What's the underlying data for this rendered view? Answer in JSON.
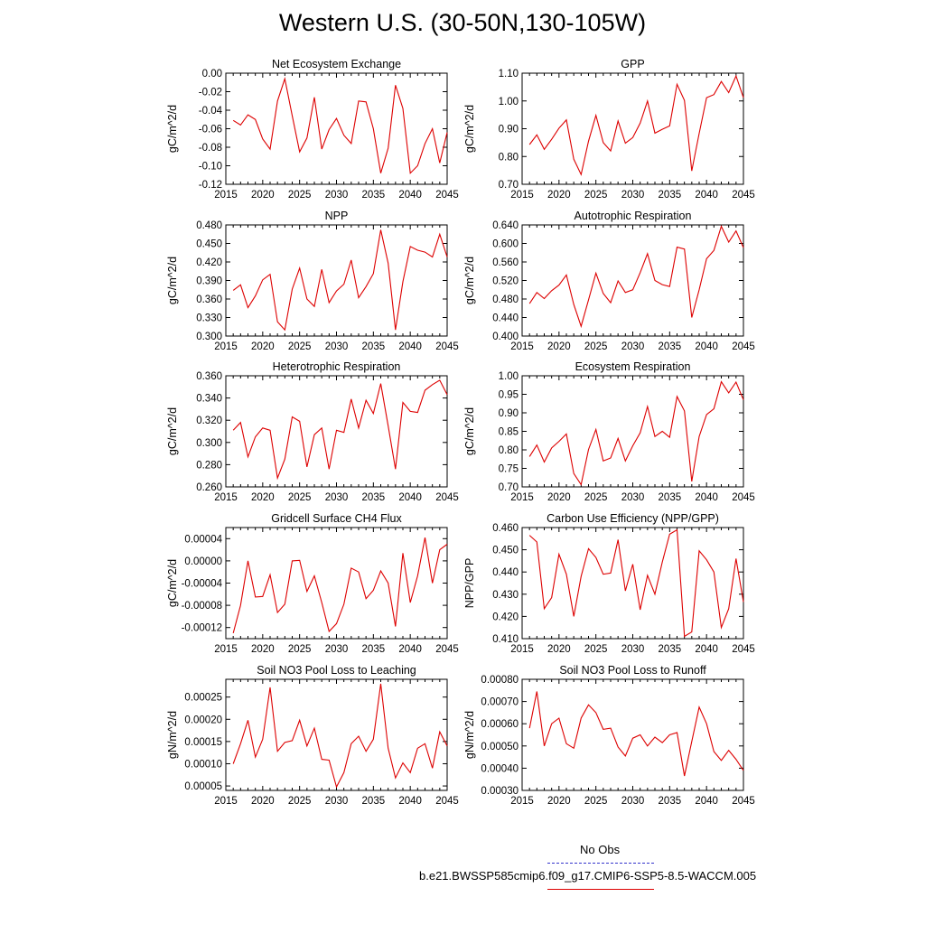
{
  "title": "Western U.S. (30-50N,130-105W)",
  "legend": [
    {
      "label": "No Obs",
      "color": "#3333cc",
      "style": "dashed"
    },
    {
      "label": "b.e21.BWSSP585cmip6.f09_g17.CMIP6-SSP5-8.5-WACCM.005",
      "color": "#dd0000",
      "style": "solid"
    }
  ],
  "line_color": "#dd0000",
  "x_ticks": [
    2015,
    2020,
    2025,
    2030,
    2035,
    2040,
    2045
  ],
  "chart_data": [
    {
      "type": "line",
      "title": "Net Ecosystem Exchange",
      "ylabel": "gC/m^2/d",
      "xlim": [
        2015,
        2045
      ],
      "ylim": [
        -0.12,
        0.0
      ],
      "yticks": [
        "0.00",
        "-0.02",
        "-0.04",
        "-0.06",
        "-0.08",
        "-0.10",
        "-0.12"
      ],
      "ytick_values": [
        0.0,
        -0.02,
        -0.04,
        -0.06,
        -0.08,
        -0.1,
        -0.12
      ],
      "x": [
        2016,
        2017,
        2018,
        2019,
        2020,
        2021,
        2022,
        2023,
        2024,
        2025,
        2026,
        2027,
        2028,
        2029,
        2030,
        2031,
        2032,
        2033,
        2034,
        2035,
        2036,
        2037,
        2038,
        2039,
        2040,
        2041,
        2042,
        2043,
        2044,
        2045
      ],
      "values": [
        -0.051,
        -0.056,
        -0.045,
        -0.05,
        -0.071,
        -0.082,
        -0.03,
        -0.006,
        -0.046,
        -0.085,
        -0.07,
        -0.026,
        -0.082,
        -0.061,
        -0.049,
        -0.067,
        -0.076,
        -0.03,
        -0.031,
        -0.06,
        -0.108,
        -0.081,
        -0.013,
        -0.038,
        -0.108,
        -0.1,
        -0.076,
        -0.06,
        -0.097,
        -0.064
      ]
    },
    {
      "type": "line",
      "title": "GPP",
      "ylabel": "gC/m^2/d",
      "xlim": [
        2015,
        2045
      ],
      "ylim": [
        0.7,
        1.1
      ],
      "yticks": [
        "0.70",
        "0.80",
        "0.90",
        "1.00",
        "1.10"
      ],
      "ytick_values": [
        0.7,
        0.8,
        0.9,
        1.0,
        1.1
      ],
      "x": [
        2016,
        2017,
        2018,
        2019,
        2020,
        2021,
        2022,
        2023,
        2024,
        2025,
        2026,
        2027,
        2028,
        2029,
        2030,
        2031,
        2032,
        2033,
        2034,
        2035,
        2036,
        2037,
        2038,
        2039,
        2040,
        2041,
        2042,
        2043,
        2044,
        2045
      ],
      "values": [
        0.843,
        0.878,
        0.826,
        0.862,
        0.902,
        0.932,
        0.79,
        0.735,
        0.855,
        0.948,
        0.85,
        0.82,
        0.928,
        0.848,
        0.868,
        0.92,
        1.0,
        0.884,
        0.898,
        0.91,
        1.06,
        1.002,
        0.748,
        0.883,
        1.012,
        1.023,
        1.07,
        1.03,
        1.09,
        1.012
      ]
    },
    {
      "type": "line",
      "title": "NPP",
      "ylabel": "gC/m^2/d",
      "xlim": [
        2015,
        2045
      ],
      "ylim": [
        0.3,
        0.48
      ],
      "yticks": [
        "0.300",
        "0.330",
        "0.360",
        "0.390",
        "0.420",
        "0.450",
        "0.480"
      ],
      "ytick_values": [
        0.3,
        0.33,
        0.36,
        0.39,
        0.42,
        0.45,
        0.48
      ],
      "x": [
        2016,
        2017,
        2018,
        2019,
        2020,
        2021,
        2022,
        2023,
        2024,
        2025,
        2026,
        2027,
        2028,
        2029,
        2030,
        2031,
        2032,
        2033,
        2034,
        2035,
        2036,
        2037,
        2038,
        2039,
        2040,
        2041,
        2042,
        2043,
        2044,
        2045
      ],
      "values": [
        0.374,
        0.383,
        0.346,
        0.365,
        0.391,
        0.4,
        0.323,
        0.31,
        0.376,
        0.41,
        0.36,
        0.348,
        0.408,
        0.354,
        0.373,
        0.384,
        0.423,
        0.362,
        0.38,
        0.401,
        0.472,
        0.418,
        0.31,
        0.388,
        0.445,
        0.439,
        0.436,
        0.428,
        0.465,
        0.428
      ]
    },
    {
      "type": "line",
      "title": "Autotrophic Respiration",
      "ylabel": "gC/m^2/d",
      "xlim": [
        2015,
        2045
      ],
      "ylim": [
        0.4,
        0.64
      ],
      "yticks": [
        "0.400",
        "0.440",
        "0.480",
        "0.520",
        "0.560",
        "0.600",
        "0.640"
      ],
      "ytick_values": [
        0.4,
        0.44,
        0.48,
        0.52,
        0.56,
        0.6,
        0.64
      ],
      "x": [
        2016,
        2017,
        2018,
        2019,
        2020,
        2021,
        2022,
        2023,
        2024,
        2025,
        2026,
        2027,
        2028,
        2029,
        2030,
        2031,
        2032,
        2033,
        2034,
        2035,
        2036,
        2037,
        2038,
        2039,
        2040,
        2041,
        2042,
        2043,
        2044,
        2045
      ],
      "values": [
        0.47,
        0.494,
        0.481,
        0.498,
        0.51,
        0.532,
        0.468,
        0.421,
        0.478,
        0.536,
        0.492,
        0.472,
        0.519,
        0.494,
        0.5,
        0.537,
        0.578,
        0.52,
        0.511,
        0.507,
        0.592,
        0.588,
        0.44,
        0.5,
        0.567,
        0.585,
        0.637,
        0.603,
        0.627,
        0.591
      ]
    },
    {
      "type": "line",
      "title": "Heterotrophic Respiration",
      "ylabel": "gC/m^2/d",
      "xlim": [
        2015,
        2045
      ],
      "ylim": [
        0.26,
        0.36
      ],
      "yticks": [
        "0.260",
        "0.280",
        "0.300",
        "0.320",
        "0.340",
        "0.360"
      ],
      "ytick_values": [
        0.26,
        0.28,
        0.3,
        0.32,
        0.34,
        0.36
      ],
      "x": [
        2016,
        2017,
        2018,
        2019,
        2020,
        2021,
        2022,
        2023,
        2024,
        2025,
        2026,
        2027,
        2028,
        2029,
        2030,
        2031,
        2032,
        2033,
        2034,
        2035,
        2036,
        2037,
        2038,
        2039,
        2040,
        2041,
        2042,
        2043,
        2044,
        2045
      ],
      "values": [
        0.311,
        0.318,
        0.287,
        0.305,
        0.313,
        0.311,
        0.268,
        0.285,
        0.323,
        0.319,
        0.278,
        0.307,
        0.313,
        0.276,
        0.311,
        0.309,
        0.339,
        0.313,
        0.338,
        0.326,
        0.353,
        0.315,
        0.276,
        0.336,
        0.328,
        0.327,
        0.347,
        0.352,
        0.356,
        0.343
      ]
    },
    {
      "type": "line",
      "title": "Ecosystem Respiration",
      "ylabel": "gC/m^2/d",
      "xlim": [
        2015,
        2045
      ],
      "ylim": [
        0.7,
        1.0
      ],
      "yticks": [
        "0.70",
        "0.75",
        "0.80",
        "0.85",
        "0.90",
        "0.95",
        "1.00"
      ],
      "ytick_values": [
        0.7,
        0.75,
        0.8,
        0.85,
        0.9,
        0.95,
        1.0
      ],
      "x": [
        2016,
        2017,
        2018,
        2019,
        2020,
        2021,
        2022,
        2023,
        2024,
        2025,
        2026,
        2027,
        2028,
        2029,
        2030,
        2031,
        2032,
        2033,
        2034,
        2035,
        2036,
        2037,
        2038,
        2039,
        2040,
        2041,
        2042,
        2043,
        2044,
        2045
      ],
      "values": [
        0.782,
        0.813,
        0.767,
        0.805,
        0.823,
        0.843,
        0.736,
        0.706,
        0.801,
        0.855,
        0.77,
        0.778,
        0.831,
        0.77,
        0.811,
        0.846,
        0.917,
        0.836,
        0.85,
        0.834,
        0.944,
        0.905,
        0.715,
        0.836,
        0.895,
        0.911,
        0.984,
        0.954,
        0.983,
        0.935
      ]
    },
    {
      "type": "line",
      "title": "Gridcell Surface CH4 Flux",
      "ylabel": "gC/m^2/d",
      "xlim": [
        2015,
        2045
      ],
      "ylim": [
        -0.00014,
        6e-05
      ],
      "yticks": [
        "0.00004",
        "0.00000",
        "-0.00004",
        "-0.00008",
        "-0.00012"
      ],
      "ytick_values": [
        4e-05,
        0.0,
        -4e-05,
        -8e-05,
        -0.00012
      ],
      "x": [
        2016,
        2017,
        2018,
        2019,
        2020,
        2021,
        2022,
        2023,
        2024,
        2025,
        2026,
        2027,
        2028,
        2029,
        2030,
        2031,
        2032,
        2033,
        2034,
        2035,
        2036,
        2037,
        2038,
        2039,
        2040,
        2041,
        2042,
        2043,
        2044,
        2045
      ],
      "values": [
        -0.00013,
        -8e-05,
        0.0,
        -6.5e-05,
        -6.4e-05,
        -2.5e-05,
        -9.3e-05,
        -7.8e-05,
        0.0,
        1e-06,
        -5.5e-05,
        -2.7e-05,
        -7.5e-05,
        -0.000127,
        -0.000113,
        -7.8e-05,
        -1.3e-05,
        -2e-05,
        -6.8e-05,
        -5.3e-05,
        -1.8e-05,
        -4e-05,
        -0.000118,
        1.4e-05,
        -7.5e-05,
        -2.7e-05,
        4.2e-05,
        -4e-05,
        2e-05,
        3e-05
      ]
    },
    {
      "type": "line",
      "title": "Carbon Use Efficiency (NPP/GPP)",
      "ylabel": "NPP/GPP",
      "xlim": [
        2015,
        2045
      ],
      "ylim": [
        0.41,
        0.46
      ],
      "yticks": [
        "0.410",
        "0.420",
        "0.430",
        "0.440",
        "0.450",
        "0.460"
      ],
      "ytick_values": [
        0.41,
        0.42,
        0.43,
        0.44,
        0.45,
        0.46
      ],
      "x": [
        2016,
        2017,
        2018,
        2019,
        2020,
        2021,
        2022,
        2023,
        2024,
        2025,
        2026,
        2027,
        2028,
        2029,
        2030,
        2031,
        2032,
        2033,
        2034,
        2035,
        2036,
        2037,
        2038,
        2039,
        2040,
        2041,
        2042,
        2043,
        2044,
        2045
      ],
      "values": [
        0.4565,
        0.4535,
        0.4235,
        0.4285,
        0.448,
        0.439,
        0.42,
        0.438,
        0.4505,
        0.4465,
        0.439,
        0.4395,
        0.4545,
        0.4315,
        0.4435,
        0.423,
        0.4385,
        0.43,
        0.4445,
        0.457,
        0.459,
        0.411,
        0.413,
        0.4495,
        0.4455,
        0.44,
        0.415,
        0.4235,
        0.446,
        0.4265
      ]
    },
    {
      "type": "line",
      "title": "Soil NO3 Pool Loss to Leaching",
      "ylabel": "gN/m^2/d",
      "xlim": [
        2015,
        2045
      ],
      "ylim": [
        4e-05,
        0.00029
      ],
      "yticks": [
        "0.00005",
        "0.00010",
        "0.00015",
        "0.00020",
        "0.00025"
      ],
      "ytick_values": [
        5e-05,
        0.0001,
        0.00015,
        0.0002,
        0.00025
      ],
      "x": [
        2016,
        2017,
        2018,
        2019,
        2020,
        2021,
        2022,
        2023,
        2024,
        2025,
        2026,
        2027,
        2028,
        2029,
        2030,
        2031,
        2032,
        2033,
        2034,
        2035,
        2036,
        2037,
        2038,
        2039,
        2040,
        2041,
        2042,
        2043,
        2044,
        2045
      ],
      "values": [
        0.0001,
        0.000145,
        0.000198,
        0.000115,
        0.000155,
        0.000272,
        0.000128,
        0.000148,
        0.000152,
        0.000198,
        0.00014,
        0.00018,
        0.00011,
        0.000108,
        4.8e-05,
        8e-05,
        0.000145,
        0.000162,
        0.000128,
        0.000155,
        0.00028,
        0.000135,
        6.8e-05,
        0.000102,
        8e-05,
        0.000135,
        0.000145,
        9e-05,
        0.000172,
        0.00014
      ]
    },
    {
      "type": "line",
      "title": "Soil NO3 Pool Loss to Runoff",
      "ylabel": "gN/m^2/d",
      "xlim": [
        2015,
        2045
      ],
      "ylim": [
        0.0003,
        0.0008
      ],
      "yticks": [
        "0.00030",
        "0.00040",
        "0.00050",
        "0.00060",
        "0.00070",
        "0.00080"
      ],
      "ytick_values": [
        0.0003,
        0.0004,
        0.0005,
        0.0006,
        0.0007,
        0.0008
      ],
      "x": [
        2016,
        2017,
        2018,
        2019,
        2020,
        2021,
        2022,
        2023,
        2024,
        2025,
        2026,
        2027,
        2028,
        2029,
        2030,
        2031,
        2032,
        2033,
        2034,
        2035,
        2036,
        2037,
        2038,
        2039,
        2040,
        2041,
        2042,
        2043,
        2044,
        2045
      ],
      "values": [
        0.00058,
        0.000745,
        0.0005,
        0.0006,
        0.000625,
        0.00051,
        0.00049,
        0.000625,
        0.000685,
        0.00065,
        0.000575,
        0.00058,
        0.000495,
        0.000455,
        0.000535,
        0.00055,
        0.0005,
        0.00054,
        0.000515,
        0.00055,
        0.00056,
        0.000365,
        0.00052,
        0.000675,
        0.0006,
        0.000475,
        0.000435,
        0.00048,
        0.00044,
        0.00039
      ]
    }
  ]
}
